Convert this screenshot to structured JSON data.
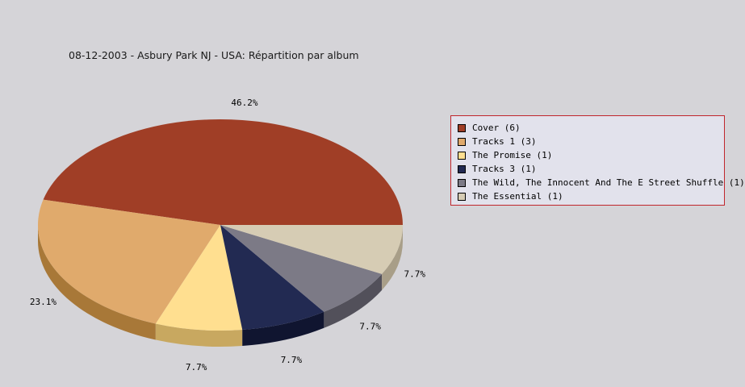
{
  "chart_data": {
    "type": "pie",
    "title": "08-12-2003 - Asbury Park NJ - USA:  Répartition par album",
    "slices": [
      {
        "label": "Cover (6)",
        "value": 6,
        "pct_label": "46.2%",
        "color": "#a03e26",
        "side_color": "#781000"
      },
      {
        "label": "Tracks 1 (3)",
        "value": 3,
        "pct_label": "23.1%",
        "color": "#e0aa6c",
        "side_color": "#a87838"
      },
      {
        "label": "The Promise (1)",
        "value": 1,
        "pct_label": "7.7%",
        "color": "#ffdf90",
        "side_color": "#c8a860"
      },
      {
        "label": "Tracks 3 (1)",
        "value": 1,
        "pct_label": "7.7%",
        "color": "#222a52",
        "side_color": "#101530"
      },
      {
        "label": "The Wild, The Innocent And The E Street Shuffle (1)",
        "value": 1,
        "pct_label": "7.7%",
        "color": "#7c7a86",
        "side_color": "#52505a"
      },
      {
        "label": "The Essential (1)",
        "value": 1,
        "pct_label": "7.7%",
        "color": "#d6ccb4",
        "side_color": "#a89e88"
      }
    ],
    "legend_position": "right",
    "legend_border_color": "#c0262c",
    "legend_background": "#e2e2ec",
    "background": "#d5d4d8"
  }
}
